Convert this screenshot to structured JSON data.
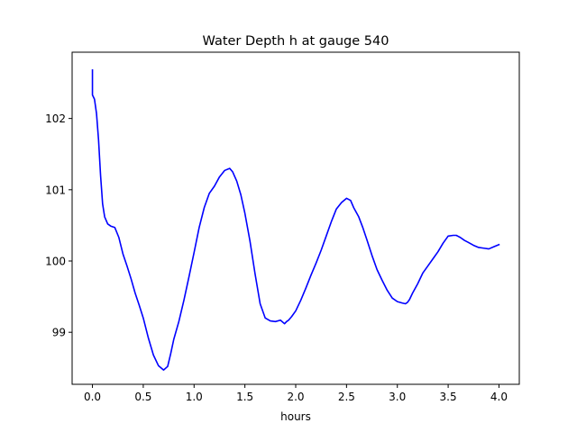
{
  "chart_data": {
    "type": "line",
    "title": "Water Depth h at gauge 540",
    "xlabel": "hours",
    "ylabel": "",
    "xlim": [
      -0.2,
      4.2
    ],
    "ylim": [
      98.27,
      102.93
    ],
    "grid": false,
    "x_ticks": [
      0.0,
      0.5,
      1.0,
      1.5,
      2.0,
      2.5,
      3.0,
      3.5,
      4.0
    ],
    "x_tick_labels": [
      "0.0",
      "0.5",
      "1.0",
      "1.5",
      "2.0",
      "2.5",
      "3.0",
      "3.5",
      "4.0"
    ],
    "y_ticks": [
      99,
      100,
      101,
      102
    ],
    "y_tick_labels": [
      "99",
      "100",
      "101",
      "102"
    ],
    "series": [
      {
        "color": "#0000ff",
        "x": [
          0.0,
          0.0,
          0.02,
          0.04,
          0.06,
          0.08,
          0.1,
          0.12,
          0.15,
          0.18,
          0.22,
          0.26,
          0.3,
          0.34,
          0.38,
          0.42,
          0.46,
          0.5,
          0.55,
          0.6,
          0.65,
          0.7,
          0.74,
          0.77,
          0.8,
          0.85,
          0.9,
          0.95,
          1.0,
          1.05,
          1.1,
          1.15,
          1.2,
          1.25,
          1.3,
          1.35,
          1.38,
          1.42,
          1.46,
          1.5,
          1.55,
          1.6,
          1.65,
          1.7,
          1.75,
          1.8,
          1.85,
          1.89,
          1.91,
          1.93,
          1.96,
          2.0,
          2.05,
          2.1,
          2.15,
          2.2,
          2.25,
          2.3,
          2.35,
          2.4,
          2.45,
          2.5,
          2.54,
          2.57,
          2.62,
          2.66,
          2.7,
          2.75,
          2.8,
          2.85,
          2.9,
          2.95,
          3.0,
          3.05,
          3.08,
          3.1,
          3.12,
          3.15,
          3.2,
          3.25,
          3.3,
          3.35,
          3.4,
          3.45,
          3.5,
          3.55,
          3.58,
          3.62,
          3.66,
          3.7,
          3.75,
          3.8,
          3.85,
          3.9,
          3.95,
          4.0
        ],
        "y": [
          102.68,
          102.33,
          102.27,
          102.07,
          101.7,
          101.2,
          100.8,
          100.62,
          100.52,
          100.49,
          100.47,
          100.33,
          100.1,
          99.93,
          99.75,
          99.55,
          99.38,
          99.2,
          98.92,
          98.68,
          98.53,
          98.47,
          98.52,
          98.7,
          98.9,
          99.15,
          99.45,
          99.78,
          100.12,
          100.47,
          100.75,
          100.95,
          101.05,
          101.18,
          101.27,
          101.3,
          101.25,
          101.12,
          100.93,
          100.67,
          100.28,
          99.82,
          99.4,
          99.2,
          99.16,
          99.15,
          99.17,
          99.12,
          99.15,
          99.17,
          99.22,
          99.3,
          99.45,
          99.62,
          99.8,
          99.97,
          100.15,
          100.35,
          100.55,
          100.73,
          100.82,
          100.88,
          100.85,
          100.75,
          100.62,
          100.47,
          100.3,
          100.08,
          99.88,
          99.73,
          99.59,
          99.48,
          99.43,
          99.41,
          99.4,
          99.42,
          99.46,
          99.55,
          99.68,
          99.83,
          99.93,
          100.03,
          100.13,
          100.25,
          100.35,
          100.36,
          100.36,
          100.33,
          100.29,
          100.26,
          100.22,
          100.19,
          100.18,
          100.17,
          100.2,
          100.23
        ]
      }
    ]
  }
}
